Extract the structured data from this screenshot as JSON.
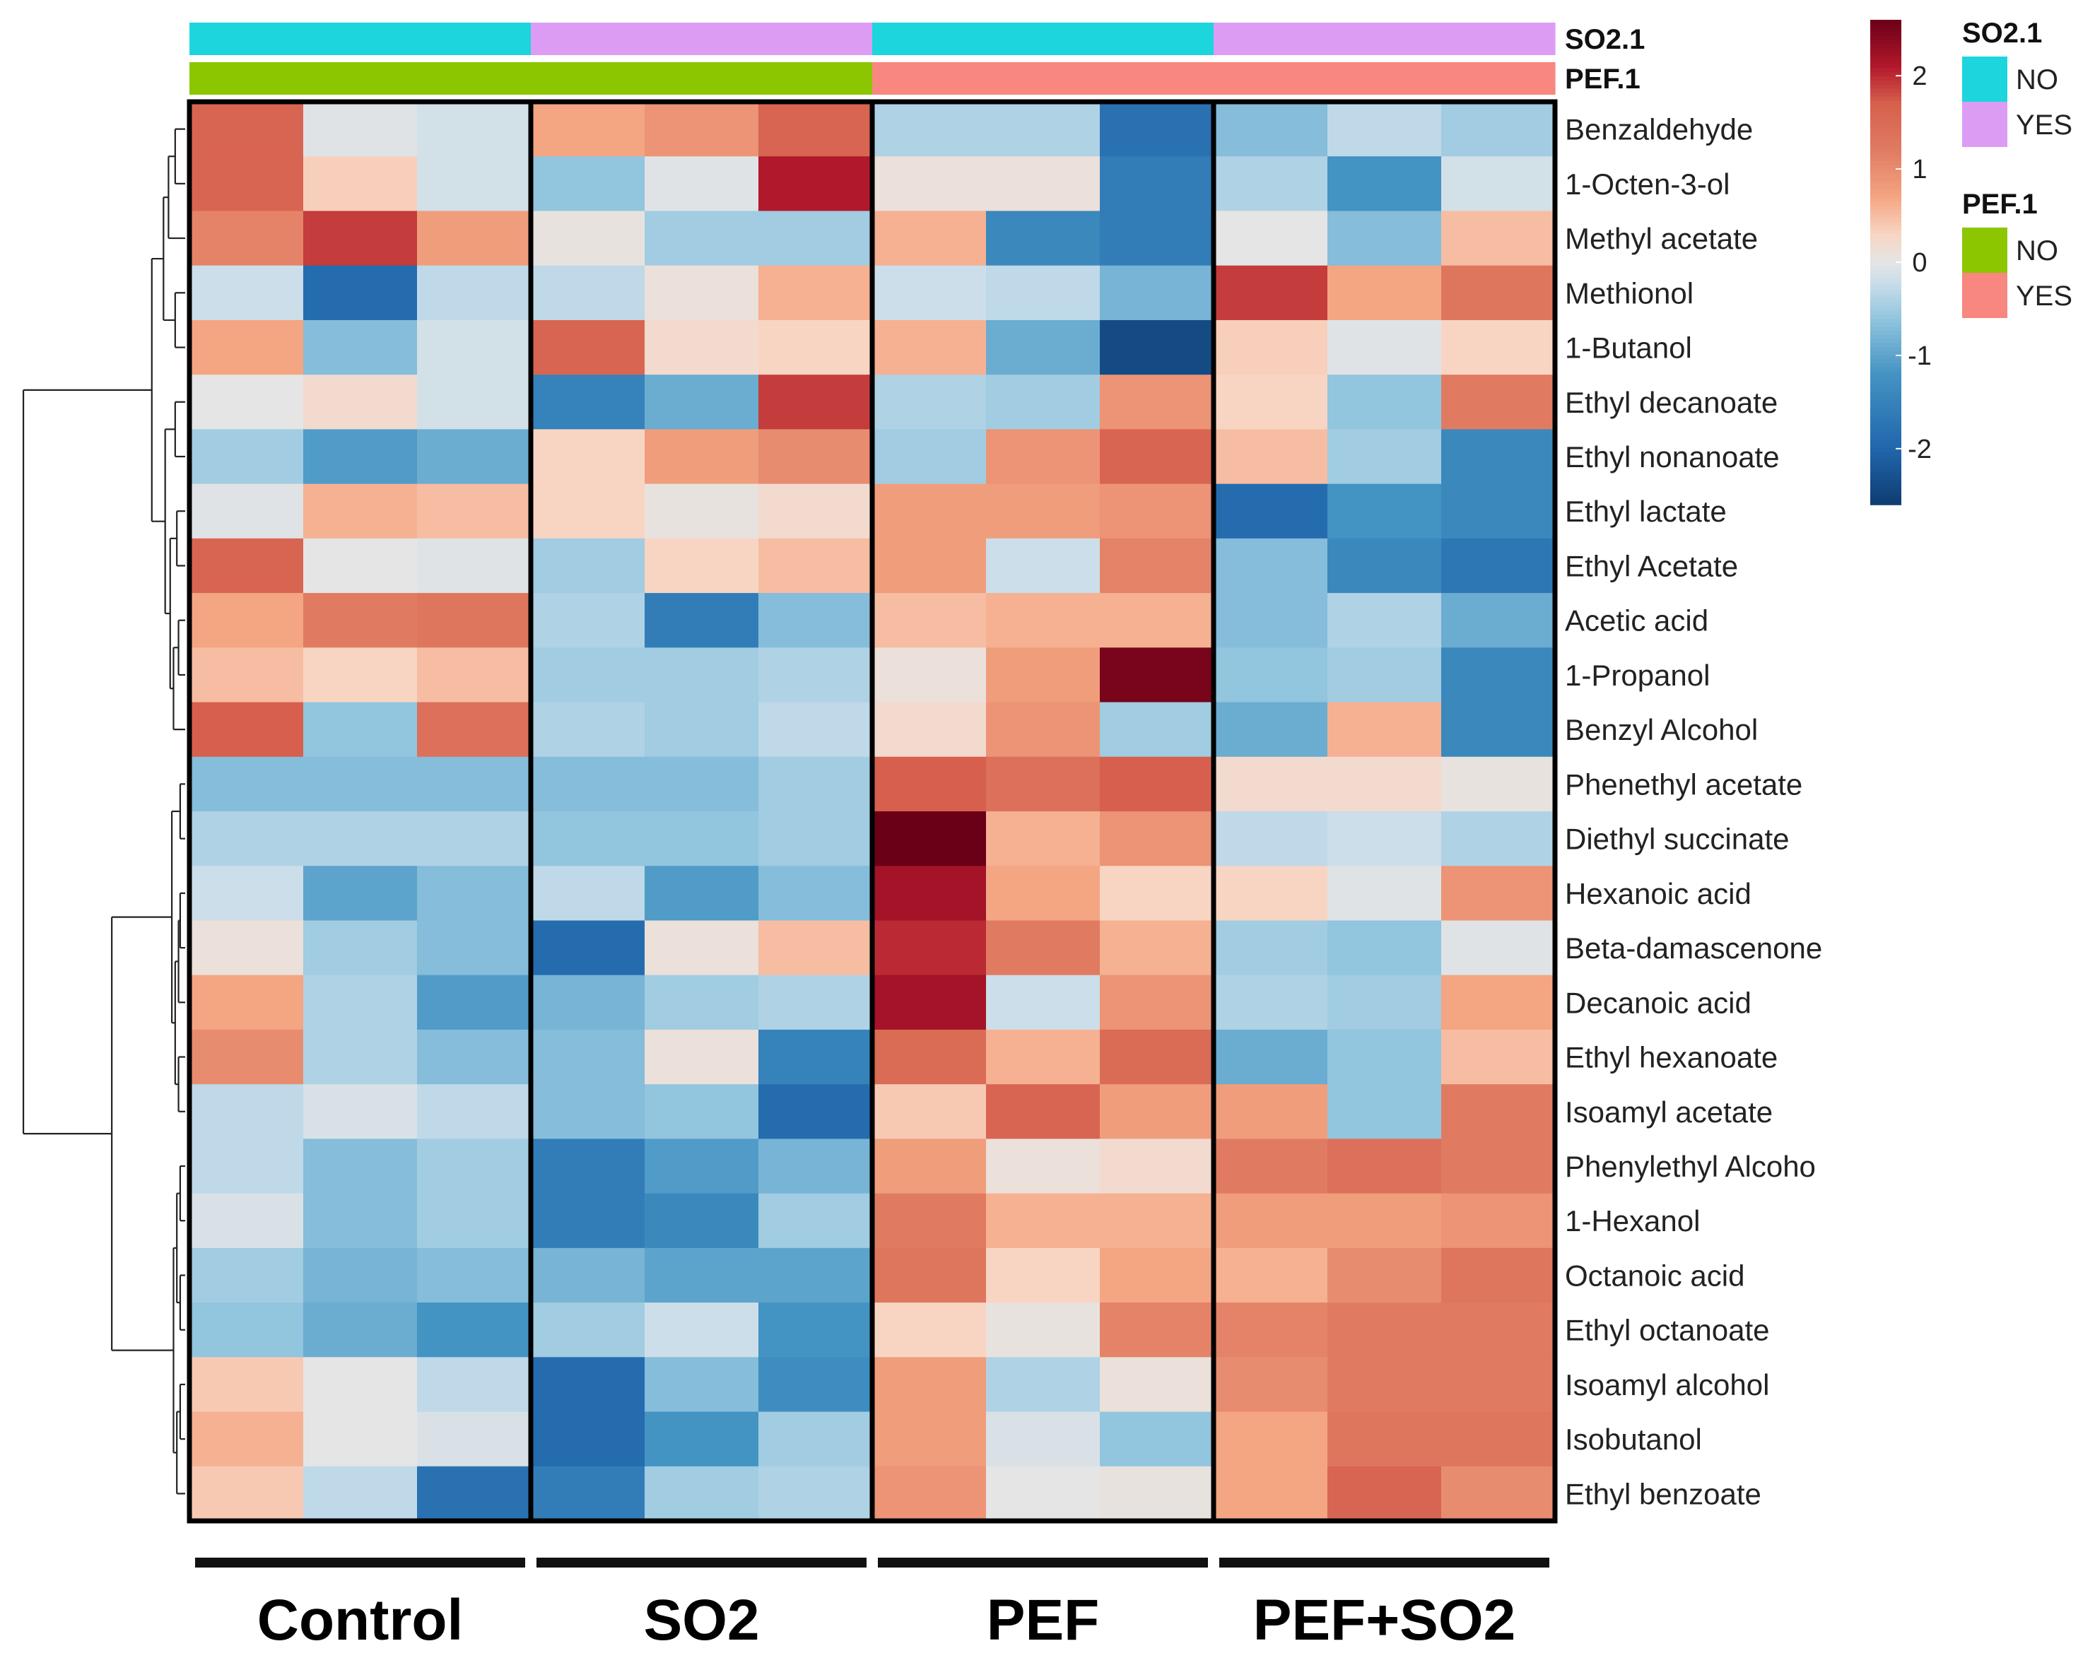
{
  "chart_data": {
    "type": "heatmap",
    "title": "",
    "groups": [
      "Control",
      "SO2",
      "PEF",
      "PEF+SO2"
    ],
    "samples_per_group": 3,
    "annotations": [
      {
        "name": "SO2.1",
        "per_group": [
          "NO",
          "YES",
          "NO",
          "YES"
        ]
      },
      {
        "name": "PEF.1",
        "per_group": [
          "NO",
          "NO",
          "YES",
          "YES"
        ]
      }
    ],
    "annotation_legend": [
      {
        "title": "SO2.1",
        "levels": [
          {
            "label": "NO",
            "color": "#1DD5DD"
          },
          {
            "label": "YES",
            "color": "#DD9CF4"
          }
        ]
      },
      {
        "title": "PEF.1",
        "levels": [
          {
            "label": "NO",
            "color": "#8CC600"
          },
          {
            "label": "YES",
            "color": "#F8877F"
          }
        ]
      }
    ],
    "color_scale": {
      "range": [
        -2.6,
        2.6
      ],
      "ticks": [
        2,
        1,
        0,
        -1,
        -2
      ],
      "tick_labels": [
        "2",
        "1",
        "0",
        "-1",
        "-2"
      ],
      "stops": [
        {
          "value": -2.6,
          "color": "#0D3D72"
        },
        {
          "value": -2.0,
          "color": "#2166AC"
        },
        {
          "value": -1.2,
          "color": "#4393C3"
        },
        {
          "value": -0.6,
          "color": "#92C5DE"
        },
        {
          "value": -0.25,
          "color": "#C6DCEA"
        },
        {
          "value": 0.0,
          "color": "#E5E5E5"
        },
        {
          "value": 0.3,
          "color": "#F8D5C3"
        },
        {
          "value": 0.7,
          "color": "#F4A582"
        },
        {
          "value": 1.2,
          "color": "#E07B62"
        },
        {
          "value": 1.7,
          "color": "#D6604D"
        },
        {
          "value": 2.1,
          "color": "#B2182B"
        },
        {
          "value": 2.6,
          "color": "#6A0017"
        }
      ]
    },
    "rows": [
      "Benzaldehyde",
      "1-Octen-3-ol",
      "Methyl acetate",
      "Methionol",
      "1-Butanol",
      "Ethyl decanoate",
      "Ethyl nonanoate",
      "Ethyl lactate",
      "Ethyl Acetate",
      "Acetic acid",
      "1-Propanol",
      "Benzyl Alcohol",
      "Phenethyl acetate",
      "Diethyl succinate",
      "Hexanoic acid",
      "Beta-damascenone",
      "Decanoic acid",
      "Ethyl hexanoate",
      "Isoamyl acetate",
      "Phenylethyl Alcoho",
      "1-Hexanol",
      "Octanoic acid",
      "Ethyl octanoate",
      "Isoamyl alcohol",
      "Isobutanol",
      "Ethyl benzoate"
    ],
    "values": [
      [
        1.6,
        -0.05,
        -0.15,
        0.7,
        0.9,
        1.6,
        -0.4,
        -0.4,
        -1.8,
        -0.7,
        -0.3,
        -0.5
      ],
      [
        1.6,
        0.35,
        -0.15,
        -0.6,
        -0.05,
        2.1,
        0.1,
        0.1,
        -1.6,
        -0.4,
        -1.2,
        -0.15
      ],
      [
        1.1,
        1.9,
        0.8,
        0.05,
        -0.5,
        -0.5,
        0.6,
        -1.4,
        -1.6,
        0.0,
        -0.7,
        0.5
      ],
      [
        -0.2,
        -1.9,
        -0.3,
        -0.3,
        0.1,
        0.6,
        -0.2,
        -0.3,
        -0.8,
        1.9,
        0.7,
        1.3
      ],
      [
        0.7,
        -0.7,
        -0.15,
        1.6,
        0.2,
        0.3,
        0.6,
        -0.9,
        -2.4,
        0.35,
        -0.05,
        0.3
      ],
      [
        0.0,
        0.2,
        -0.15,
        -1.5,
        -0.9,
        1.9,
        -0.4,
        -0.5,
        0.9,
        0.3,
        -0.6,
        1.2
      ],
      [
        -0.5,
        -1.1,
        -0.9,
        0.3,
        0.8,
        1.0,
        -0.5,
        0.9,
        1.6,
        0.5,
        -0.5,
        -1.4
      ],
      [
        -0.05,
        0.6,
        0.5,
        0.3,
        0.05,
        0.2,
        0.8,
        0.8,
        0.9,
        -1.9,
        -1.2,
        -1.4
      ],
      [
        1.6,
        0.0,
        -0.05,
        -0.5,
        0.3,
        0.5,
        0.8,
        -0.2,
        1.1,
        -0.7,
        -1.4,
        -1.7
      ],
      [
        0.7,
        1.2,
        1.3,
        -0.4,
        -1.6,
        -0.7,
        0.5,
        0.6,
        0.6,
        -0.7,
        -0.4,
        -0.9
      ],
      [
        0.5,
        0.3,
        0.5,
        -0.5,
        -0.5,
        -0.4,
        0.1,
        0.8,
        2.5,
        -0.6,
        -0.5,
        -1.4
      ],
      [
        1.7,
        -0.6,
        1.4,
        -0.4,
        -0.5,
        -0.3,
        0.2,
        0.9,
        -0.5,
        -0.9,
        0.6,
        -1.4
      ],
      [
        -0.7,
        -0.7,
        -0.7,
        -0.7,
        -0.7,
        -0.5,
        1.7,
        1.4,
        1.7,
        0.2,
        0.2,
        0.05
      ],
      [
        -0.4,
        -0.4,
        -0.4,
        -0.6,
        -0.6,
        -0.5,
        2.6,
        0.6,
        0.9,
        -0.3,
        -0.2,
        -0.4
      ],
      [
        -0.2,
        -1.0,
        -0.7,
        -0.3,
        -1.1,
        -0.7,
        2.2,
        0.7,
        0.3,
        0.3,
        -0.05,
        0.9
      ],
      [
        0.1,
        -0.5,
        -0.7,
        -1.9,
        0.1,
        0.5,
        2.0,
        1.2,
        0.6,
        -0.5,
        -0.6,
        -0.05
      ],
      [
        0.7,
        -0.4,
        -1.1,
        -0.8,
        -0.5,
        -0.4,
        2.2,
        -0.2,
        0.9,
        -0.4,
        -0.5,
        0.7
      ],
      [
        1.0,
        -0.4,
        -0.7,
        -0.7,
        0.1,
        -1.5,
        1.5,
        0.6,
        1.5,
        -0.9,
        -0.6,
        0.5
      ],
      [
        -0.3,
        -0.1,
        -0.3,
        -0.7,
        -0.6,
        -1.9,
        0.4,
        1.6,
        0.8,
        0.8,
        -0.6,
        1.2
      ],
      [
        -0.3,
        -0.7,
        -0.5,
        -1.6,
        -1.1,
        -0.8,
        0.8,
        0.1,
        0.2,
        1.2,
        1.4,
        1.2
      ],
      [
        -0.1,
        -0.7,
        -0.5,
        -1.6,
        -1.4,
        -0.5,
        1.2,
        0.6,
        0.6,
        0.8,
        0.8,
        0.9
      ],
      [
        -0.5,
        -0.8,
        -0.7,
        -0.8,
        -1.0,
        -1.0,
        1.3,
        0.3,
        0.7,
        0.6,
        1.0,
        1.3
      ],
      [
        -0.6,
        -0.9,
        -1.2,
        -0.5,
        -0.2,
        -1.2,
        0.3,
        0.05,
        1.1,
        1.1,
        1.2,
        1.2
      ],
      [
        0.4,
        0.0,
        -0.3,
        -1.9,
        -0.7,
        -1.3,
        0.8,
        -0.4,
        0.1,
        1.0,
        1.2,
        1.2
      ],
      [
        0.6,
        0.0,
        -0.1,
        -1.9,
        -1.2,
        -0.5,
        0.8,
        -0.1,
        -0.6,
        0.7,
        1.3,
        1.3
      ],
      [
        0.4,
        -0.3,
        -1.8,
        -1.6,
        -0.5,
        -0.4,
        0.9,
        0.0,
        0.05,
        0.7,
        1.6,
        1.0
      ]
    ]
  }
}
